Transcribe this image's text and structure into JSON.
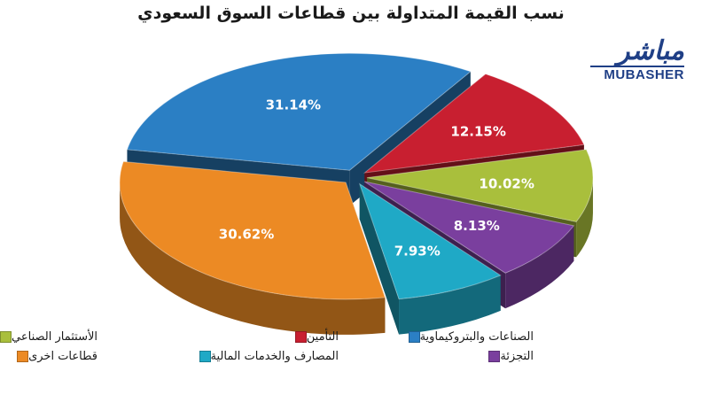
{
  "chart_data": {
    "type": "pie",
    "title": "نسب القيمة المتداولة بين قطاعات السوق السعودي",
    "slices": [
      {
        "label": "قطاعات اخرى",
        "value": 30.62,
        "value_label": "30.62%",
        "color": "#ec8a24"
      },
      {
        "label": "الصناعات والبتروكيماوية",
        "value": 31.14,
        "value_label": "31.14%",
        "color": "#2b7fc4"
      },
      {
        "label": "التأمين",
        "value": 12.15,
        "value_label": "12.15%",
        "color": "#c81f30"
      },
      {
        "label": "الأستثمار الصناعي",
        "value": 10.02,
        "value_label": "10.02%",
        "color": "#a9bf3c"
      },
      {
        "label": "التجزئة",
        "value": 8.13,
        "value_label": "8.13%",
        "color": "#7a3f9e"
      },
      {
        "label": "المصارف والخدمات المالية",
        "value": 7.93,
        "value_label": "7.93%",
        "color": "#1fa9c6"
      }
    ],
    "style": "3d-exploded-pie",
    "legend_position": "bottom"
  },
  "logo": {
    "arabic": "مباشر",
    "english": "MUBASHER"
  }
}
